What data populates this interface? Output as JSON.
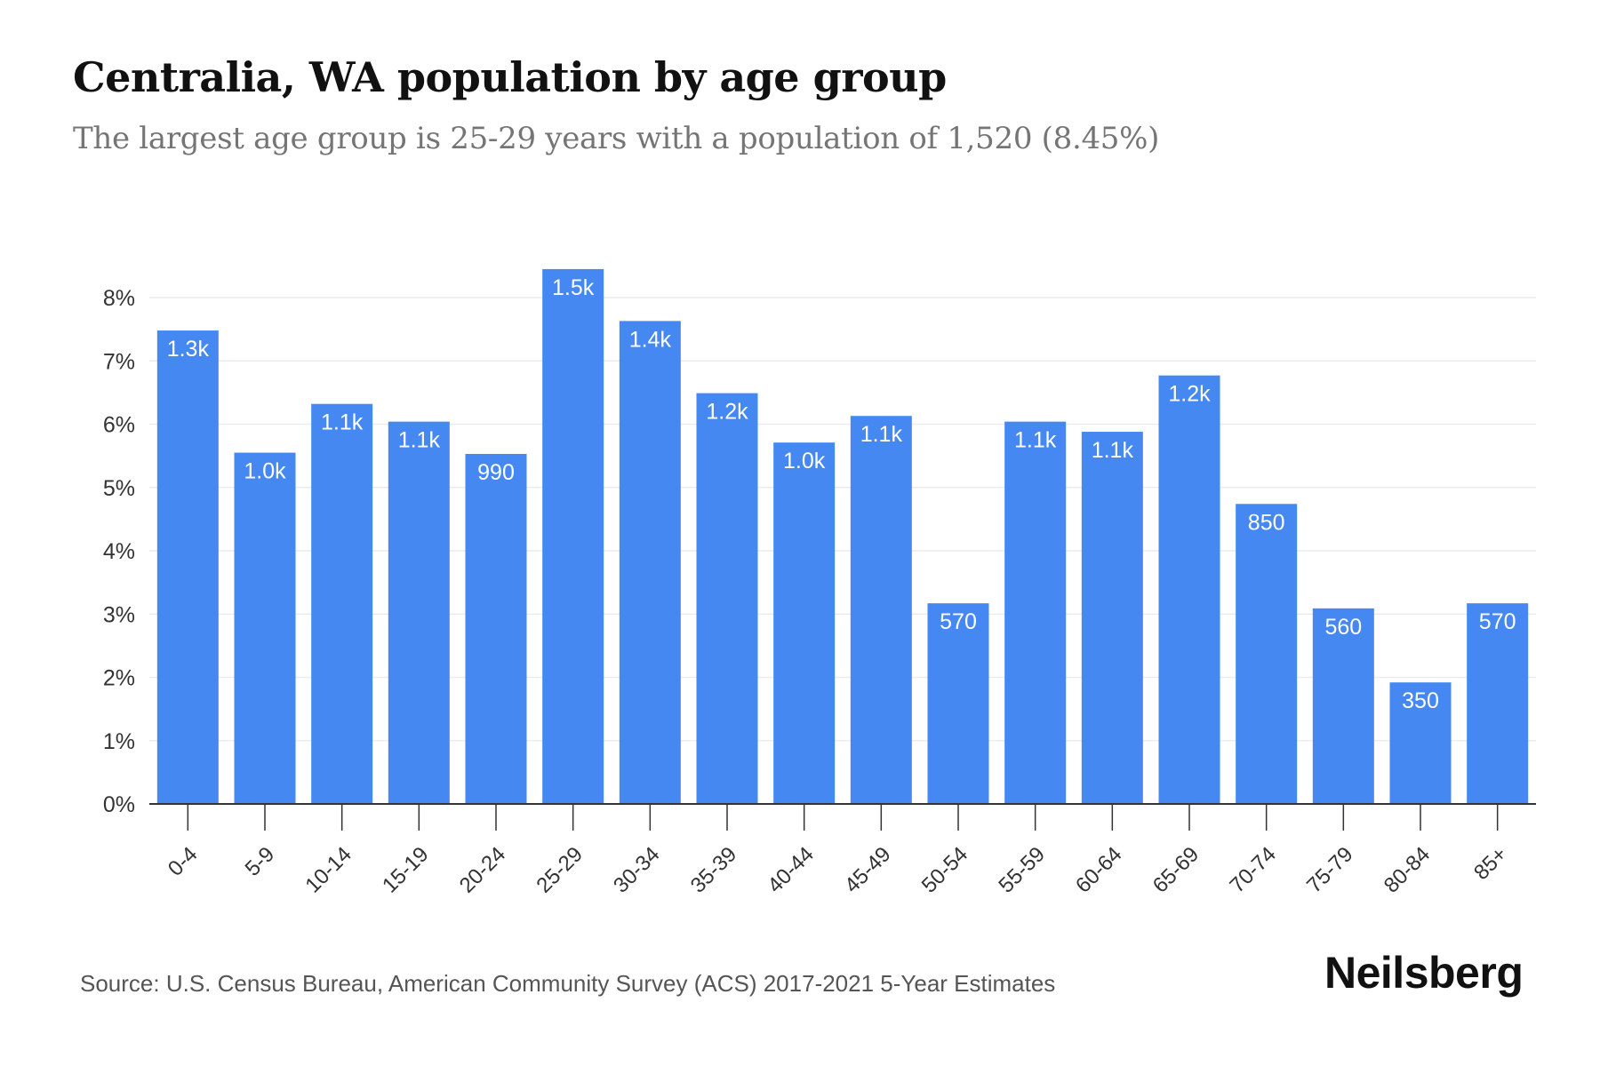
{
  "title": "Centralia, WA population by age group",
  "subtitle": "The largest age group is 25-29 years with a population of 1,520 (8.45%)",
  "source": "Source: U.S. Census Bureau, American Community Survey (ACS) 2017-2021 5-Year Estimates",
  "brand": "Neilsberg",
  "colors": {
    "bar": "#4688F1",
    "bar_label": "#ffffff",
    "grid": "#ececec",
    "axis": "#333333",
    "tick_text": "#333333"
  },
  "chart_data": {
    "type": "bar",
    "categories": [
      "0-4",
      "5-9",
      "10-14",
      "15-19",
      "20-24",
      "25-29",
      "30-34",
      "35-39",
      "40-44",
      "45-49",
      "50-54",
      "55-59",
      "60-64",
      "65-69",
      "70-74",
      "75-79",
      "80-84",
      "85+"
    ],
    "values": [
      7.48,
      5.55,
      6.32,
      6.04,
      5.53,
      8.45,
      7.63,
      6.49,
      5.71,
      6.13,
      3.17,
      6.04,
      5.88,
      6.77,
      4.74,
      3.09,
      1.92,
      3.17
    ],
    "data_labels": [
      "1.3k",
      "1.0k",
      "1.1k",
      "1.1k",
      "990",
      "1.5k",
      "1.4k",
      "1.2k",
      "1.0k",
      "1.1k",
      "570",
      "1.1k",
      "1.1k",
      "1.2k",
      "850",
      "560",
      "350",
      "570"
    ],
    "y_ticks": [
      0,
      1,
      2,
      3,
      4,
      5,
      6,
      7,
      8
    ],
    "y_tick_labels": [
      "0%",
      "1%",
      "2%",
      "3%",
      "4%",
      "5%",
      "6%",
      "7%",
      "8%"
    ],
    "ylim": [
      0,
      8
    ],
    "xlabel": "",
    "ylabel": "",
    "grid": true,
    "legend": "none"
  }
}
